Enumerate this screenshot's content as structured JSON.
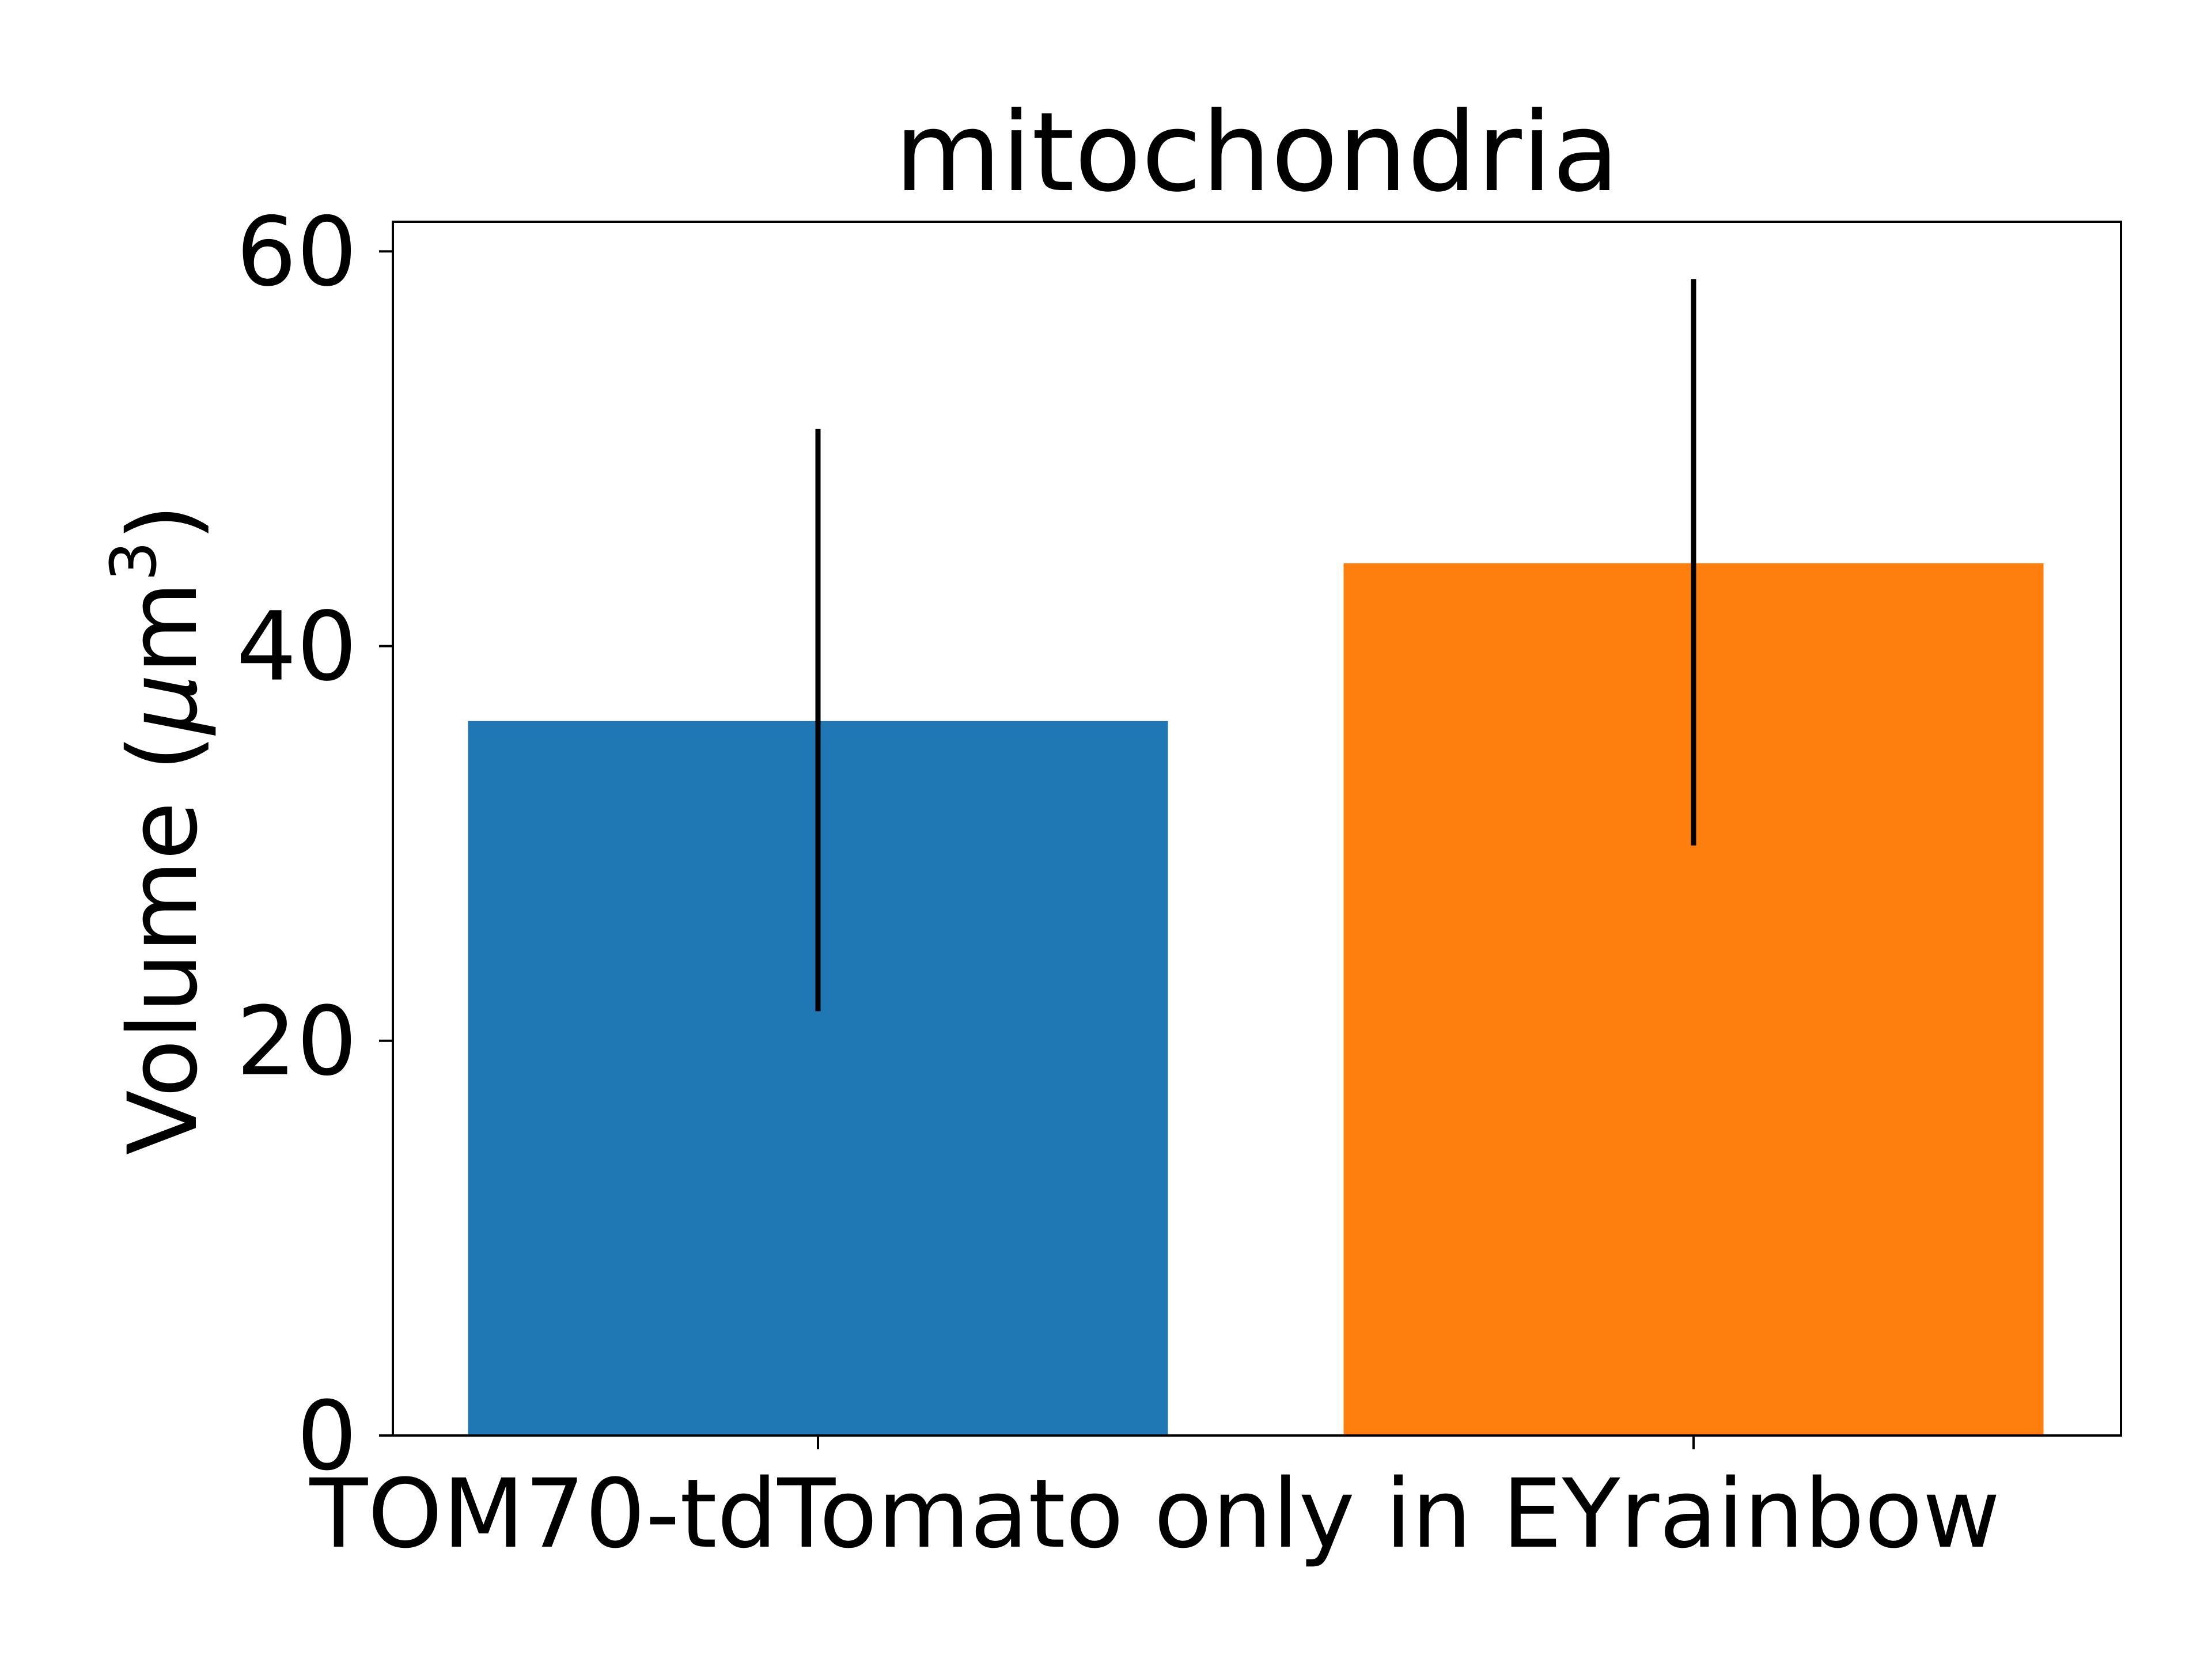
{
  "chart_data": {
    "type": "bar",
    "title": "mitochondria",
    "xlabel": "TOM70-tdTomato only in EYrainbow",
    "ylabel": "Volume (",
    "ylabel_unit_mu": "μ",
    "ylabel_unit_m": "m",
    "ylabel_unit_exp": "3",
    "ylabel_close": ")",
    "ylim": [
      0,
      61.5
    ],
    "yticks": [
      0,
      20,
      40,
      60
    ],
    "ytick_labels": [
      "0",
      "20",
      "40",
      "60"
    ],
    "grid": false,
    "series": [
      {
        "values": [
          36.2,
          44.2
        ],
        "errors": [
          [
            21.5,
            51.0
          ],
          [
            29.9,
            58.6
          ]
        ],
        "colors": [
          "#1f77b4",
          "#ff7f0e"
        ]
      }
    ],
    "errorbar_color": "#000000"
  }
}
